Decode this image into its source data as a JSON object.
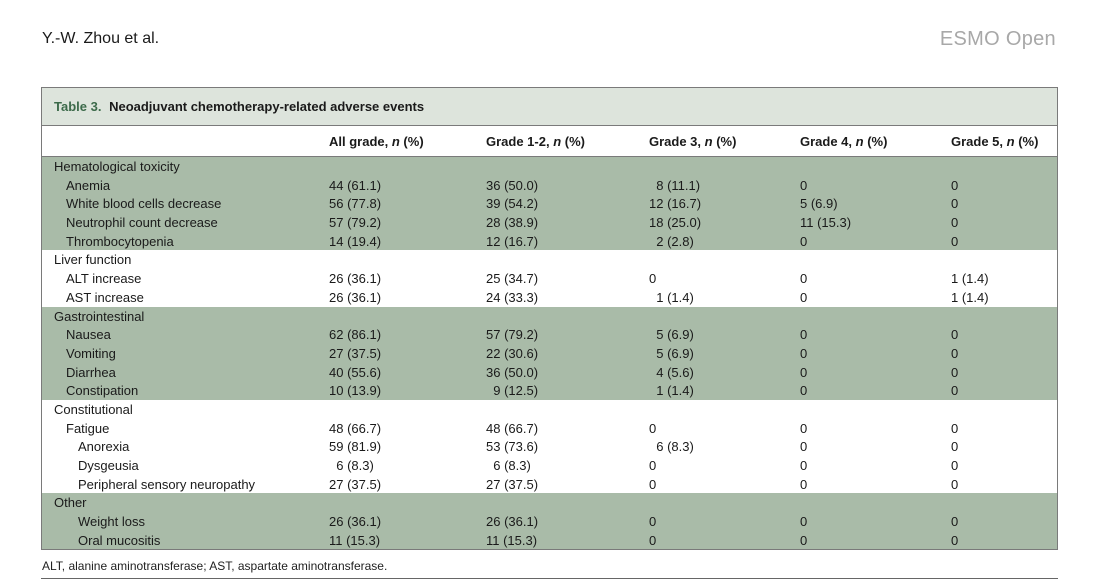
{
  "running_head": {
    "authors": "Y.-W. Zhou et al.",
    "journal": "ESMO Open"
  },
  "table": {
    "label": "Table 3.",
    "title": "Neoadjuvant chemotherapy-related adverse events",
    "headers": [
      {
        "pre": "",
        "n": "",
        "post": ""
      },
      {
        "pre": "All grade, ",
        "n": "n",
        "post": " (%)"
      },
      {
        "pre": "Grade 1-2, ",
        "n": "n",
        "post": " (%)"
      },
      {
        "pre": "Grade 3, ",
        "n": "n",
        "post": " (%)"
      },
      {
        "pre": "Grade 4, ",
        "n": "n",
        "post": " (%)"
      },
      {
        "pre": "Grade 5, ",
        "n": "n",
        "post": " (%)"
      }
    ],
    "rows": [
      {
        "level": 0,
        "shade": true,
        "cells": [
          "Hematological toxicity",
          "",
          "",
          "",
          "",
          ""
        ]
      },
      {
        "level": 1,
        "shade": true,
        "cells": [
          "Anemia",
          "44 (61.1)",
          "36 (50.0)",
          "  8 (11.1)",
          "0",
          "0"
        ]
      },
      {
        "level": 1,
        "shade": true,
        "cells": [
          "White blood cells decrease",
          "56 (77.8)",
          "39 (54.2)",
          "12 (16.7)",
          "5 (6.9)",
          "0"
        ]
      },
      {
        "level": 1,
        "shade": true,
        "cells": [
          "Neutrophil count decrease",
          "57 (79.2)",
          "28 (38.9)",
          "18 (25.0)",
          "11 (15.3)",
          "0"
        ]
      },
      {
        "level": 1,
        "shade": true,
        "cells": [
          "Thrombocytopenia",
          "14 (19.4)",
          "12 (16.7)",
          "  2 (2.8)",
          "0",
          "0"
        ]
      },
      {
        "level": 0,
        "shade": false,
        "cells": [
          "Liver function",
          "",
          "",
          "",
          "",
          ""
        ]
      },
      {
        "level": 1,
        "shade": false,
        "cells": [
          "ALT increase",
          "26 (36.1)",
          "25 (34.7)",
          "0",
          "0",
          "1 (1.4)"
        ]
      },
      {
        "level": 1,
        "shade": false,
        "cells": [
          "AST increase",
          "26 (36.1)",
          "24 (33.3)",
          "  1 (1.4)",
          "0",
          "1 (1.4)"
        ]
      },
      {
        "level": 0,
        "shade": true,
        "cells": [
          "Gastrointestinal",
          "",
          "",
          "",
          "",
          ""
        ]
      },
      {
        "level": 1,
        "shade": true,
        "cells": [
          "Nausea",
          "62 (86.1)",
          "57 (79.2)",
          "  5 (6.9)",
          "0",
          "0"
        ]
      },
      {
        "level": 1,
        "shade": true,
        "cells": [
          "Vomiting",
          "27 (37.5)",
          "22 (30.6)",
          "  5 (6.9)",
          "0",
          "0"
        ]
      },
      {
        "level": 1,
        "shade": true,
        "cells": [
          "Diarrhea",
          "40 (55.6)",
          "36 (50.0)",
          "  4 (5.6)",
          "0",
          "0"
        ]
      },
      {
        "level": 1,
        "shade": true,
        "cells": [
          "Constipation",
          "10 (13.9)",
          "  9 (12.5)",
          "  1 (1.4)",
          "0",
          "0"
        ]
      },
      {
        "level": 0,
        "shade": false,
        "cells": [
          "Constitutional",
          "",
          "",
          "",
          "",
          ""
        ]
      },
      {
        "level": 1,
        "shade": false,
        "cells": [
          "Fatigue",
          "48 (66.7)",
          "48 (66.7)",
          "0",
          "0",
          "0"
        ]
      },
      {
        "level": 2,
        "shade": false,
        "cells": [
          "Anorexia",
          "59 (81.9)",
          "53 (73.6)",
          "  6 (8.3)",
          "0",
          "0"
        ]
      },
      {
        "level": 2,
        "shade": false,
        "cells": [
          "Dysgeusia",
          "  6 (8.3)",
          "  6 (8.3)",
          "0",
          "0",
          "0"
        ]
      },
      {
        "level": 2,
        "shade": false,
        "cells": [
          "Peripheral sensory neuropathy",
          "27 (37.5)",
          "27 (37.5)",
          "0",
          "0",
          "0"
        ]
      },
      {
        "level": 0,
        "shade": true,
        "cells": [
          "Other",
          "",
          "",
          "",
          "",
          ""
        ]
      },
      {
        "level": 2,
        "shade": true,
        "cells": [
          "Weight loss",
          "26 (36.1)",
          "26 (36.1)",
          "0",
          "0",
          "0"
        ]
      },
      {
        "level": 2,
        "shade": true,
        "cells": [
          "Oral mucositis",
          "11 (15.3)",
          "11 (15.3)",
          "0",
          "0",
          "0"
        ]
      }
    ],
    "footnote": "ALT, alanine aminotransferase; AST, aspartate aminotransferase."
  },
  "colors": {
    "caption_bg": "#dde4dc",
    "shade_bg": "#a9bba8",
    "label_green": "#3c6a4a",
    "journal_gray": "#a8a8a8"
  }
}
